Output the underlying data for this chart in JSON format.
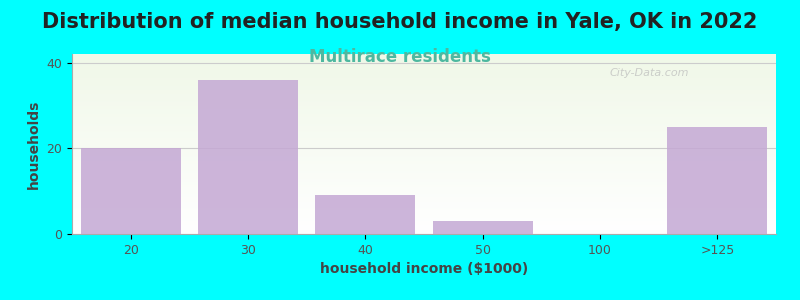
{
  "title": "Distribution of median household income in Yale, OK in 2022",
  "subtitle": "Multirace residents",
  "xlabel": "household income ($1000)",
  "ylabel": "households",
  "background_color": "#00FFFF",
  "plot_bg_gradient_top": "#f0f8e8",
  "plot_bg_gradient_bottom": "#ffffff",
  "bar_color": "#c4a8d4",
  "bar_color_alpha": 0.85,
  "watermark": "City-Data.com",
  "categories": [
    "20",
    "30",
    "40",
    "50",
    "100",
    ">125"
  ],
  "values": [
    20,
    36,
    9,
    3,
    0,
    25
  ],
  "bar_positions": [
    0,
    1,
    2,
    3,
    4,
    5
  ],
  "xlim": [
    -0.5,
    5.5
  ],
  "ylim": [
    0,
    42
  ],
  "yticks": [
    0,
    20,
    40
  ],
  "title_fontsize": 15,
  "subtitle_fontsize": 12,
  "subtitle_color": "#4db8a0",
  "axis_label_fontsize": 10,
  "tick_fontsize": 9,
  "title_color": "#222222",
  "bar_width": 0.85
}
